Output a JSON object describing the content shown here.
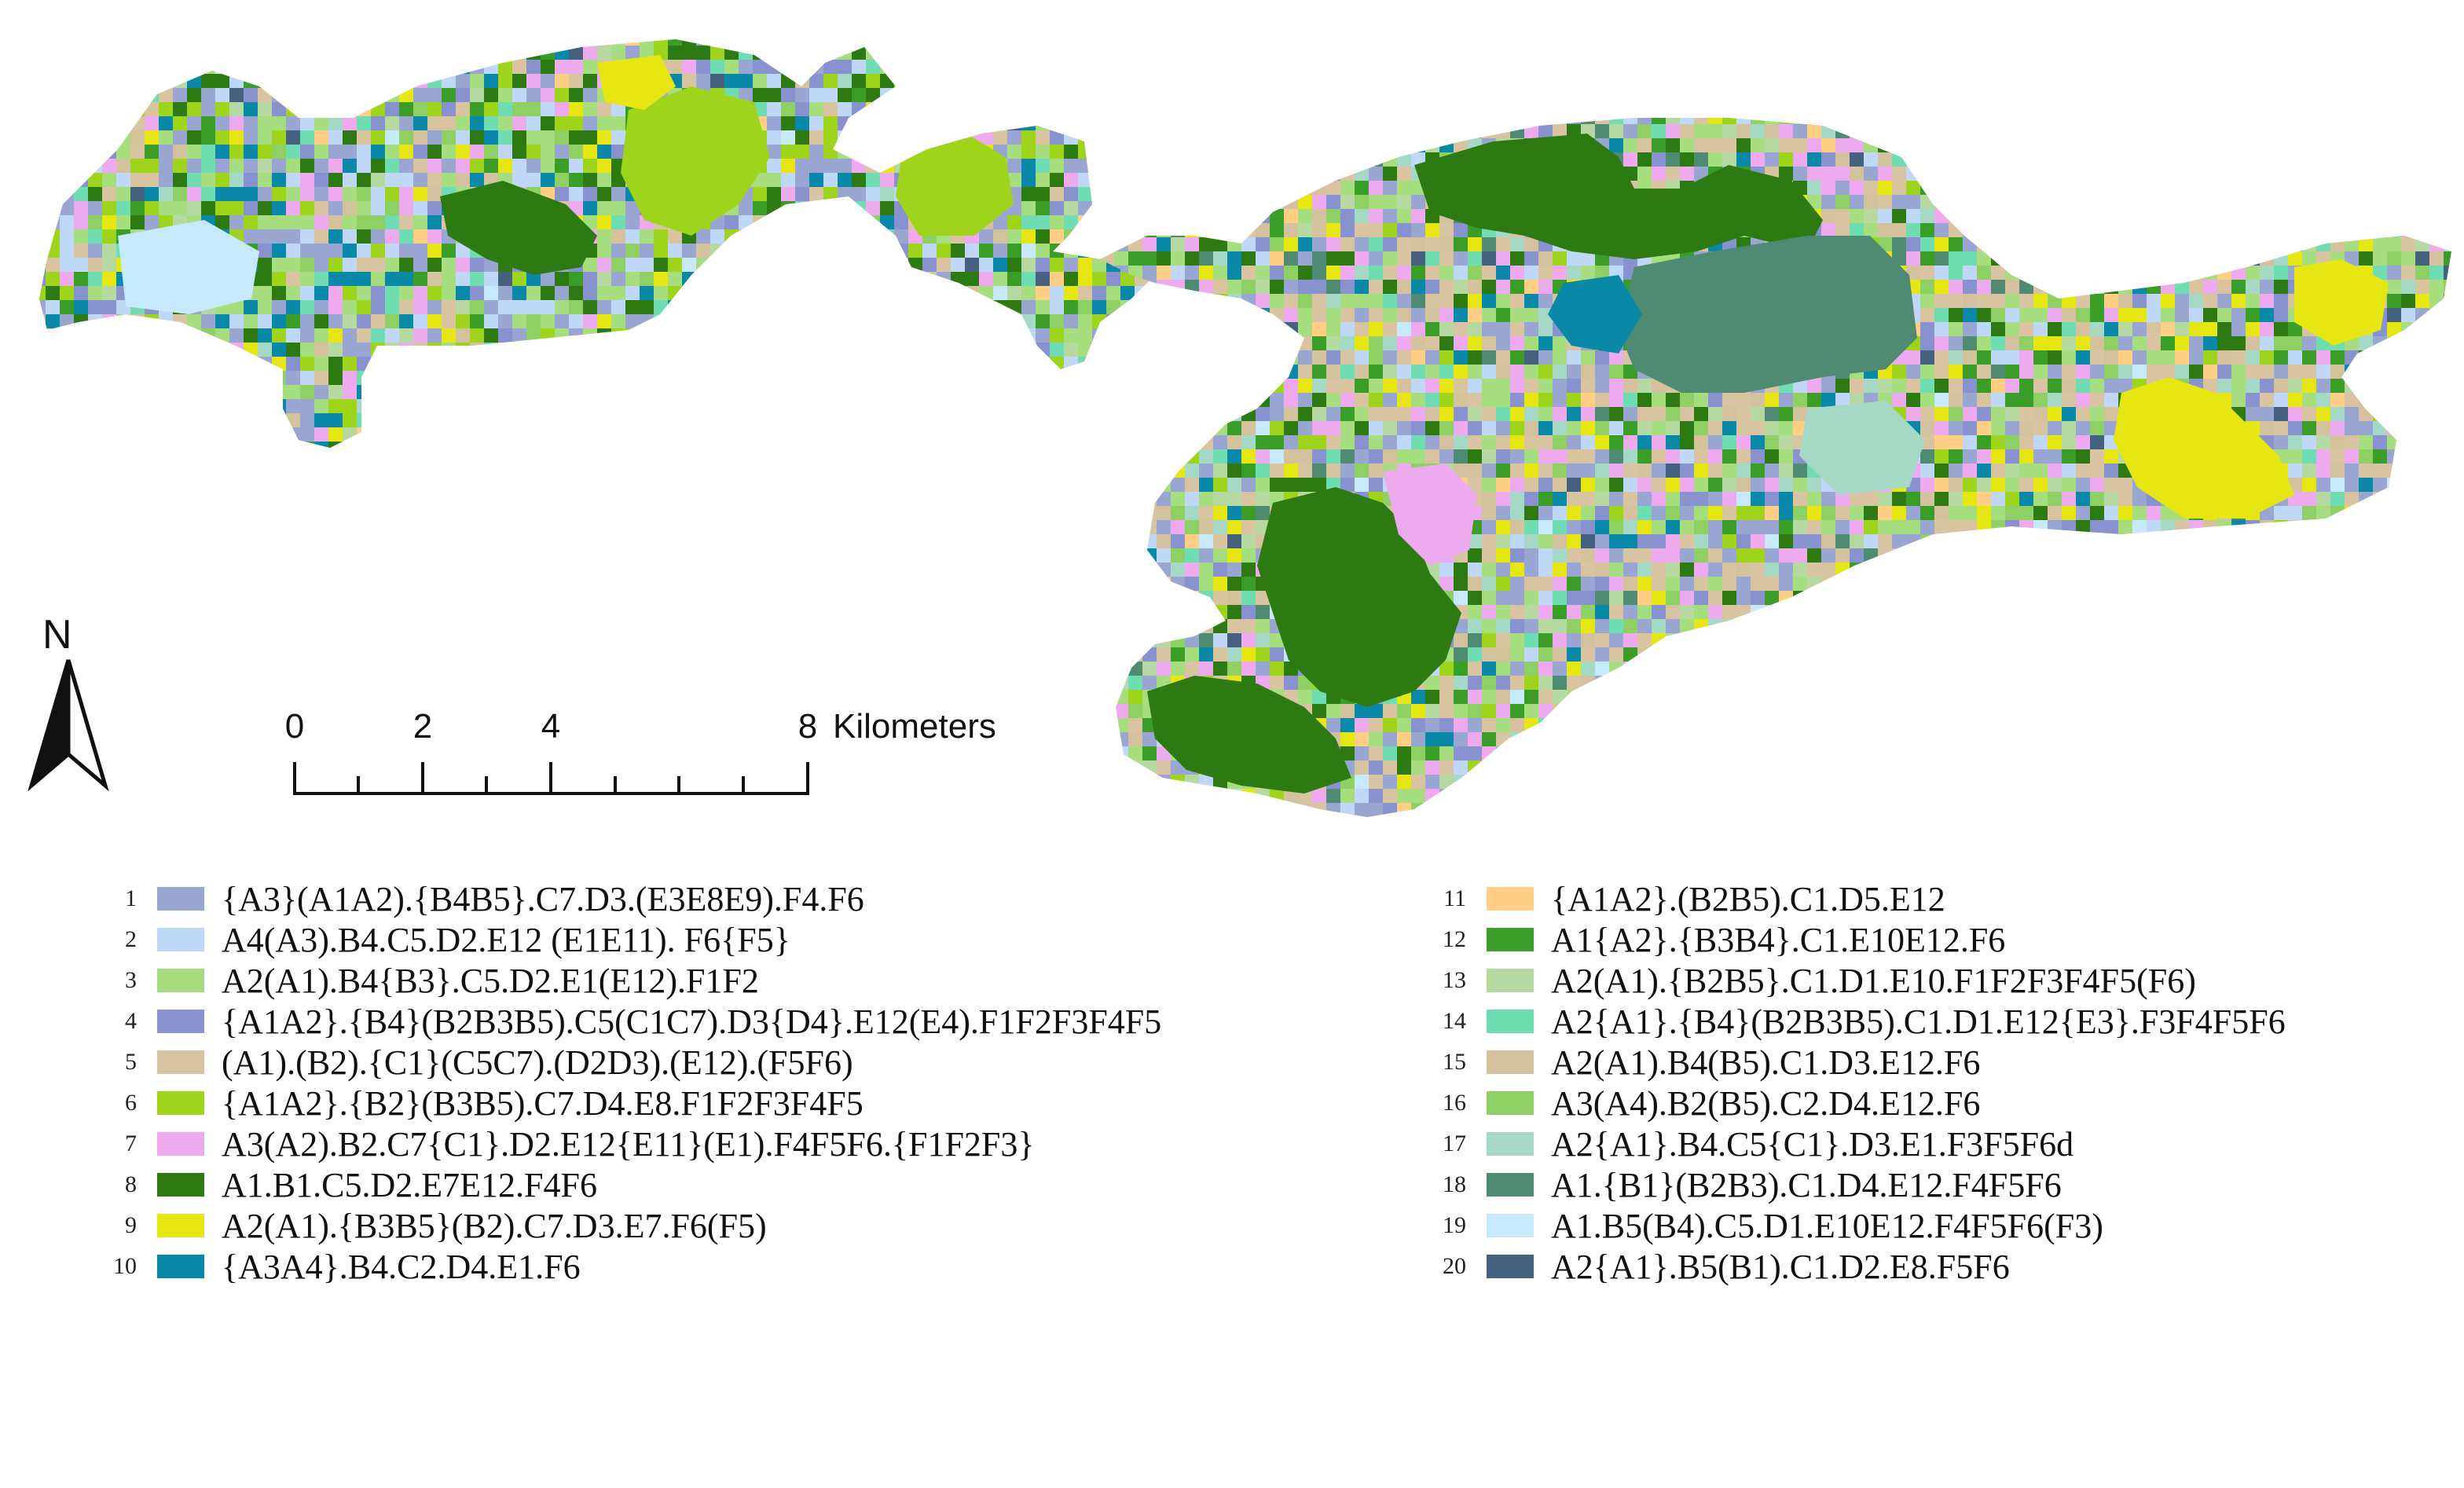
{
  "map": {
    "north_label": "N",
    "scale": {
      "ticks": [
        "0",
        "2",
        "4",
        "8"
      ],
      "unit": "Kilometers"
    }
  },
  "legend": {
    "items": [
      {
        "num": "1",
        "label": "{A3}(A1A2).{B4B5}.C7.D3.(E3E8E9).F4.F6",
        "color": "#9aa6d2"
      },
      {
        "num": "2",
        "label": "A4(A3).B4.C5.D2.E12 (E1E11). F6{F5}",
        "color": "#c0d8f7"
      },
      {
        "num": "3",
        "label": "A2(A1).B4{B3}.C5.D2.E1(E12).F1F2",
        "color": "#a6dd7f"
      },
      {
        "num": "4",
        "label": "{A1A2}.{B4}(B2B3B5).C5(C1C7).D3{D4}.E12(E4).F1F2F3F4F5",
        "color": "#8892ce"
      },
      {
        "num": "5",
        "label": "(A1).(B2).{C1}(C5C7).(D2D3).(E12).(F5F6)",
        "color": "#d8c4a1"
      },
      {
        "num": "6",
        "label": "{A1A2}.{B2}(B3B5).C7.D4.E8.F1F2F3F4F5",
        "color": "#9fd41d"
      },
      {
        "num": "7",
        "label": "A3(A2).B2.C7{C1}.D2.E12{E11}(E1).F4F5F6.{F1F2F3}",
        "color": "#eeaaee"
      },
      {
        "num": "8",
        "label": "A1.B1.C5.D2.E7E12.F4F6",
        "color": "#2d7a12"
      },
      {
        "num": "9",
        "label": "A2(A1).{B3B5}(B2).C7.D3.E7.F6(F5)",
        "color": "#e6e612"
      },
      {
        "num": "10",
        "label": "{A3A4}.B4.C2.D4.E1.F6",
        "color": "#0a88a8"
      },
      {
        "num": "11",
        "label": "{A1A2}.(B2B5).C1.D5.E12",
        "color": "#ffcf86"
      },
      {
        "num": "12",
        "label": "A1{A2}.{B3B4}.C1.E10E12.F6",
        "color": "#3a9d28"
      },
      {
        "num": "13",
        "label": "A2(A1).{B2B5}.C1.D1.E10.F1F2F3F4F5(F6)",
        "color": "#b5d9a0"
      },
      {
        "num": "14",
        "label": "A2{A1}.{B4}(B2B3B5).C1.D1.E12{E3}.F3F4F5F6",
        "color": "#6fddb1"
      },
      {
        "num": "15",
        "label": "A2(A1).B4(B5).C1.D3.E12.F6",
        "color": "#d4c29f"
      },
      {
        "num": "16",
        "label": "A3(A4).B2(B5).C2.D4.E12.F6",
        "color": "#8fd064"
      },
      {
        "num": "17",
        "label": "A2{A1}.B4.C5{C1}.D3.E1.F3F5F6d",
        "color": "#a5d9c5"
      },
      {
        "num": "18",
        "label": "A1.{B1}(B2B3).C1.D4.E12.F4F5F6",
        "color": "#4f8a73"
      },
      {
        "num": "19",
        "label": "A1.B5(B4).C5.D1.E10E12.F4F5F6(F3)",
        "color": "#c6e9fb"
      },
      {
        "num": "20",
        "label": "A2{A1}.B5(B1).C1.D2.E8.F5F6",
        "color": "#46617f"
      }
    ]
  }
}
